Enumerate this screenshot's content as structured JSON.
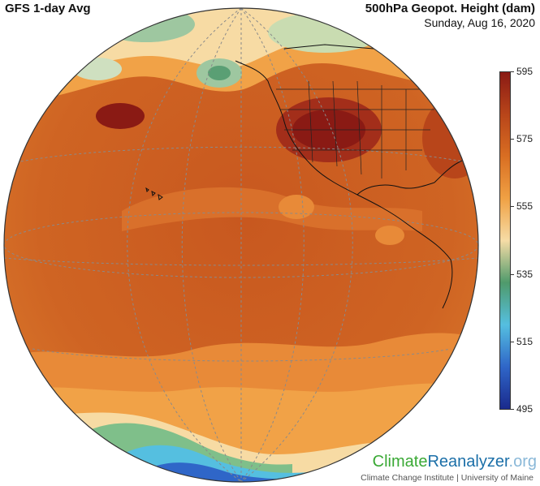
{
  "header": {
    "model_label": "GFS 1-day Avg",
    "variable_label": "500hPa Geopot. Height (dam)",
    "date_label": "Sunday, Aug 16, 2020"
  },
  "legend": {
    "ticks": [
      "595",
      "575",
      "555",
      "535",
      "515",
      "495"
    ],
    "colors": [
      "#8a1a14",
      "#b8451a",
      "#d96e22",
      "#f0a144",
      "#f6dca6",
      "#4f9a6b",
      "#55bfe0",
      "#2f66c8",
      "#1a2a8c"
    ]
  },
  "brand": {
    "part1": "Climate",
    "part2": "Reanalyzer",
    "part3": ".org",
    "credit": "Climate Change Institute | University of Maine"
  },
  "map": {
    "projection": "orthographic",
    "features": [
      "pacific-ocean",
      "north-america-outline",
      "us-state-borders",
      "hawaii-islands"
    ]
  }
}
